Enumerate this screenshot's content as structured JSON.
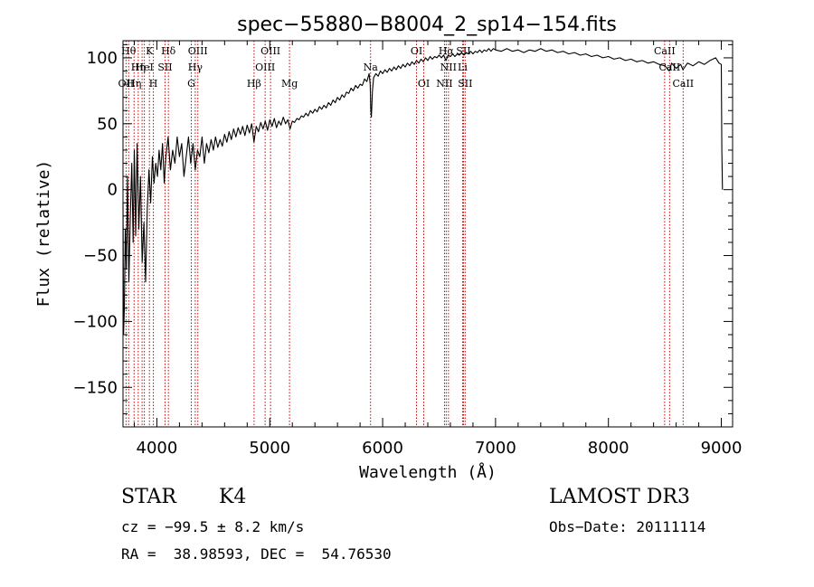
{
  "chart_data": {
    "type": "line",
    "title": "spec−55880−B8004_2_sp14−154.fits",
    "xlabel": "Wavelength (Å)",
    "ylabel": "Flux (relative)",
    "xlim": [
      3700,
      9100
    ],
    "ylim": [
      -180,
      113
    ],
    "x_ticks": [
      4000,
      5000,
      6000,
      7000,
      8000,
      9000
    ],
    "x_tick_labels": [
      "4000",
      "5000",
      "6000",
      "7000",
      "8000",
      "9000"
    ],
    "y_ticks": [
      100,
      50,
      0,
      -50,
      -100,
      -150
    ],
    "y_tick_labels": [
      "100",
      "50",
      "0",
      "−50",
      "−100",
      "−150"
    ],
    "series": [
      {
        "name": "flux",
        "color": "#000000",
        "points": [
          [
            3700,
            -10
          ],
          [
            3705,
            -110
          ],
          [
            3712,
            -90
          ],
          [
            3720,
            -30
          ],
          [
            3730,
            -60
          ],
          [
            3740,
            10
          ],
          [
            3752,
            -70
          ],
          [
            3765,
            -20
          ],
          [
            3778,
            20
          ],
          [
            3790,
            -40
          ],
          [
            3800,
            30
          ],
          [
            3812,
            -35
          ],
          [
            3825,
            35
          ],
          [
            3840,
            -30
          ],
          [
            3855,
            10
          ],
          [
            3870,
            -55
          ],
          [
            3885,
            -25
          ],
          [
            3900,
            -70
          ],
          [
            3915,
            -15
          ],
          [
            3930,
            15
          ],
          [
            3945,
            -10
          ],
          [
            3960,
            25
          ],
          [
            3975,
            5
          ],
          [
            3990,
            20
          ],
          [
            4005,
            10
          ],
          [
            4020,
            30
          ],
          [
            4035,
            15
          ],
          [
            4050,
            35
          ],
          [
            4065,
            5
          ],
          [
            4080,
            25
          ],
          [
            4100,
            40
          ],
          [
            4120,
            15
          ],
          [
            4140,
            30
          ],
          [
            4160,
            20
          ],
          [
            4180,
            40
          ],
          [
            4200,
            25
          ],
          [
            4220,
            35
          ],
          [
            4240,
            10
          ],
          [
            4260,
            25
          ],
          [
            4280,
            40
          ],
          [
            4300,
            20
          ],
          [
            4320,
            35
          ],
          [
            4340,
            15
          ],
          [
            4360,
            30
          ],
          [
            4380,
            25
          ],
          [
            4400,
            40
          ],
          [
            4420,
            20
          ],
          [
            4440,
            35
          ],
          [
            4460,
            28
          ],
          [
            4480,
            38
          ],
          [
            4500,
            30
          ],
          [
            4520,
            40
          ],
          [
            4540,
            32
          ],
          [
            4560,
            38
          ],
          [
            4580,
            33
          ],
          [
            4600,
            42
          ],
          [
            4620,
            36
          ],
          [
            4640,
            44
          ],
          [
            4660,
            38
          ],
          [
            4680,
            46
          ],
          [
            4700,
            40
          ],
          [
            4720,
            47
          ],
          [
            4740,
            42
          ],
          [
            4760,
            48
          ],
          [
            4780,
            41
          ],
          [
            4800,
            49
          ],
          [
            4820,
            43
          ],
          [
            4840,
            50
          ],
          [
            4860,
            36
          ],
          [
            4880,
            48
          ],
          [
            4900,
            44
          ],
          [
            4920,
            51
          ],
          [
            4940,
            46
          ],
          [
            4960,
            52
          ],
          [
            4980,
            45
          ],
          [
            5000,
            53
          ],
          [
            5020,
            48
          ],
          [
            5040,
            54
          ],
          [
            5060,
            47
          ],
          [
            5080,
            52
          ],
          [
            5100,
            49
          ],
          [
            5120,
            55
          ],
          [
            5140,
            50
          ],
          [
            5160,
            53
          ],
          [
            5180,
            46
          ],
          [
            5200,
            52
          ],
          [
            5220,
            51
          ],
          [
            5240,
            54
          ],
          [
            5260,
            53
          ],
          [
            5280,
            56
          ],
          [
            5300,
            55
          ],
          [
            5320,
            58
          ],
          [
            5340,
            56
          ],
          [
            5360,
            60
          ],
          [
            5380,
            58
          ],
          [
            5400,
            61
          ],
          [
            5420,
            59
          ],
          [
            5440,
            63
          ],
          [
            5460,
            61
          ],
          [
            5480,
            64
          ],
          [
            5500,
            62
          ],
          [
            5520,
            66
          ],
          [
            5540,
            64
          ],
          [
            5560,
            68
          ],
          [
            5580,
            66
          ],
          [
            5600,
            70
          ],
          [
            5620,
            68
          ],
          [
            5640,
            72
          ],
          [
            5660,
            70
          ],
          [
            5680,
            74
          ],
          [
            5700,
            73
          ],
          [
            5720,
            77
          ],
          [
            5740,
            75
          ],
          [
            5760,
            79
          ],
          [
            5780,
            77
          ],
          [
            5800,
            80
          ],
          [
            5820,
            79
          ],
          [
            5840,
            84
          ],
          [
            5860,
            82
          ],
          [
            5880,
            88
          ],
          [
            5890,
            80
          ],
          [
            5895,
            60
          ],
          [
            5900,
            55
          ],
          [
            5905,
            65
          ],
          [
            5910,
            75
          ],
          [
            5920,
            85
          ],
          [
            5940,
            88
          ],
          [
            5960,
            86
          ],
          [
            5980,
            90
          ],
          [
            6000,
            88
          ],
          [
            6020,
            91
          ],
          [
            6040,
            89
          ],
          [
            6060,
            92
          ],
          [
            6080,
            90
          ],
          [
            6100,
            93
          ],
          [
            6120,
            91
          ],
          [
            6140,
            94
          ],
          [
            6160,
            92
          ],
          [
            6180,
            95
          ],
          [
            6200,
            93
          ],
          [
            6220,
            96
          ],
          [
            6240,
            94
          ],
          [
            6260,
            97
          ],
          [
            6280,
            95
          ],
          [
            6300,
            98
          ],
          [
            6320,
            96
          ],
          [
            6340,
            99
          ],
          [
            6360,
            97
          ],
          [
            6380,
            100
          ],
          [
            6400,
            98
          ],
          [
            6420,
            101
          ],
          [
            6440,
            99
          ],
          [
            6460,
            101
          ],
          [
            6480,
            100
          ],
          [
            6500,
            102
          ],
          [
            6520,
            100
          ],
          [
            6540,
            102
          ],
          [
            6560,
            98
          ],
          [
            6580,
            102
          ],
          [
            6600,
            101
          ],
          [
            6620,
            103
          ],
          [
            6640,
            101
          ],
          [
            6660,
            103
          ],
          [
            6680,
            102
          ],
          [
            6700,
            104
          ],
          [
            6720,
            102
          ],
          [
            6740,
            104
          ],
          [
            6760,
            103
          ],
          [
            6780,
            105
          ],
          [
            6800,
            103
          ],
          [
            6820,
            105
          ],
          [
            6840,
            104
          ],
          [
            6860,
            106
          ],
          [
            6880,
            104
          ],
          [
            6900,
            106
          ],
          [
            6920,
            105
          ],
          [
            6940,
            107
          ],
          [
            6960,
            105
          ],
          [
            6980,
            107
          ],
          [
            7000,
            106
          ],
          [
            7050,
            105
          ],
          [
            7100,
            107
          ],
          [
            7150,
            105
          ],
          [
            7200,
            106
          ],
          [
            7250,
            104
          ],
          [
            7300,
            106
          ],
          [
            7350,
            105
          ],
          [
            7400,
            107
          ],
          [
            7450,
            105
          ],
          [
            7500,
            106
          ],
          [
            7550,
            104
          ],
          [
            7600,
            105
          ],
          [
            7650,
            103
          ],
          [
            7700,
            104
          ],
          [
            7750,
            102
          ],
          [
            7800,
            103
          ],
          [
            7850,
            101
          ],
          [
            7900,
            102
          ],
          [
            7950,
            100
          ],
          [
            8000,
            101
          ],
          [
            8050,
            99
          ],
          [
            8100,
            100
          ],
          [
            8150,
            98
          ],
          [
            8200,
            99
          ],
          [
            8250,
            97
          ],
          [
            8300,
            98
          ],
          [
            8350,
            96
          ],
          [
            8400,
            97
          ],
          [
            8450,
            95
          ],
          [
            8500,
            94
          ],
          [
            8540,
            90
          ],
          [
            8560,
            96
          ],
          [
            8600,
            92
          ],
          [
            8640,
            95
          ],
          [
            8660,
            91
          ],
          [
            8700,
            96
          ],
          [
            8750,
            94
          ],
          [
            8800,
            97
          ],
          [
            8850,
            95
          ],
          [
            8900,
            98
          ],
          [
            8950,
            100
          ],
          [
            8980,
            96
          ],
          [
            9000,
            95
          ],
          [
            9005,
            30
          ],
          [
            9010,
            0
          ]
        ]
      }
    ],
    "line_markers": {
      "color": "#cc0000",
      "lines": [
        {
          "x": 3727,
          "label": "OII",
          "row": 2
        },
        {
          "x": 3750,
          "label": "Hθ",
          "row": 0
        },
        {
          "x": 3798,
          "label": "Hη",
          "row": 2
        },
        {
          "x": 3835,
          "label": "Hη",
          "row": 1
        },
        {
          "x": 3869,
          "label": "",
          "row": 1
        },
        {
          "x": 3889,
          "label": "HeI",
          "row": 1
        },
        {
          "x": 3934,
          "label": "K",
          "row": 0
        },
        {
          "x": 3969,
          "label": "H",
          "row": 2
        },
        {
          "x": 4072,
          "label": "SII",
          "row": 1
        },
        {
          "x": 4102,
          "label": "Hδ",
          "row": 0
        },
        {
          "x": 4305,
          "label": "G",
          "row": 2
        },
        {
          "x": 4340,
          "label": "Hγ",
          "row": 1
        },
        {
          "x": 4363,
          "label": "OIII",
          "row": 0
        },
        {
          "x": 4861,
          "label": "Hβ",
          "row": 2
        },
        {
          "x": 4959,
          "label": "OIII",
          "row": 1
        },
        {
          "x": 5007,
          "label": "OIII",
          "row": 0
        },
        {
          "x": 5175,
          "label": "Mg",
          "row": 2
        },
        {
          "x": 5893,
          "label": "Na",
          "row": 1
        },
        {
          "x": 6300,
          "label": "OI",
          "row": 0
        },
        {
          "x": 6364,
          "label": "OI",
          "row": 2
        },
        {
          "x": 6548,
          "label": "NII",
          "row": 2
        },
        {
          "x": 6563,
          "label": "Hα",
          "row": 0
        },
        {
          "x": 6583,
          "label": "NII",
          "row": 1
        },
        {
          "x": 6708,
          "label": "Li",
          "row": 1
        },
        {
          "x": 6716,
          "label": "SII",
          "row": 0
        },
        {
          "x": 6731,
          "label": "SII",
          "row": 2
        },
        {
          "x": 8498,
          "label": "CaII",
          "row": 0
        },
        {
          "x": 8542,
          "label": "CaII",
          "row": 1
        },
        {
          "x": 8662,
          "label": "CaII",
          "row": 2
        }
      ]
    }
  },
  "info": {
    "object_class": "STAR",
    "subclass": "K4",
    "survey": "LAMOST DR3",
    "cz": "cz = −99.5 ± 8.2 km/s",
    "obs_date": "Obs−Date: 20111114",
    "coords": "RA =  38.98593, DEC =  54.76530"
  }
}
